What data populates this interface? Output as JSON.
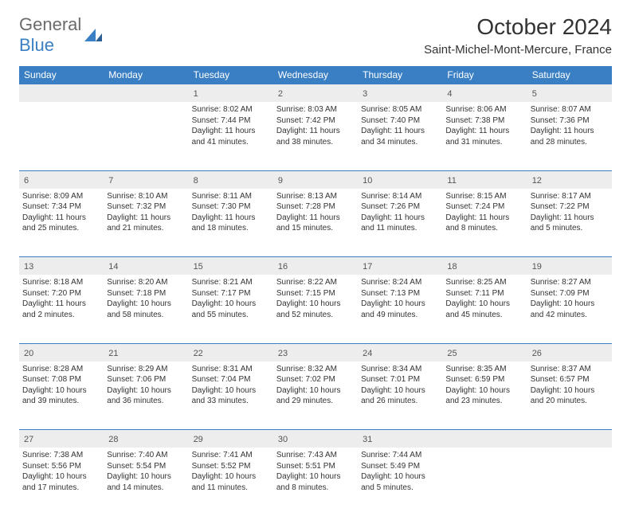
{
  "logo": {
    "text1": "General",
    "text2": "Blue"
  },
  "title": "October 2024",
  "location": "Saint-Michel-Mont-Mercure, France",
  "colors": {
    "accent": "#3a7fc4",
    "header_bg": "#3a7fc4",
    "daynum_bg": "#ededed",
    "border": "#3a7fc4",
    "text": "#333333"
  },
  "day_headers": [
    "Sunday",
    "Monday",
    "Tuesday",
    "Wednesday",
    "Thursday",
    "Friday",
    "Saturday"
  ],
  "weeks": [
    [
      null,
      null,
      {
        "n": "1",
        "sr": "8:02 AM",
        "ss": "7:44 PM",
        "dl": "11 hours and 41 minutes."
      },
      {
        "n": "2",
        "sr": "8:03 AM",
        "ss": "7:42 PM",
        "dl": "11 hours and 38 minutes."
      },
      {
        "n": "3",
        "sr": "8:05 AM",
        "ss": "7:40 PM",
        "dl": "11 hours and 34 minutes."
      },
      {
        "n": "4",
        "sr": "8:06 AM",
        "ss": "7:38 PM",
        "dl": "11 hours and 31 minutes."
      },
      {
        "n": "5",
        "sr": "8:07 AM",
        "ss": "7:36 PM",
        "dl": "11 hours and 28 minutes."
      }
    ],
    [
      {
        "n": "6",
        "sr": "8:09 AM",
        "ss": "7:34 PM",
        "dl": "11 hours and 25 minutes."
      },
      {
        "n": "7",
        "sr": "8:10 AM",
        "ss": "7:32 PM",
        "dl": "11 hours and 21 minutes."
      },
      {
        "n": "8",
        "sr": "8:11 AM",
        "ss": "7:30 PM",
        "dl": "11 hours and 18 minutes."
      },
      {
        "n": "9",
        "sr": "8:13 AM",
        "ss": "7:28 PM",
        "dl": "11 hours and 15 minutes."
      },
      {
        "n": "10",
        "sr": "8:14 AM",
        "ss": "7:26 PM",
        "dl": "11 hours and 11 minutes."
      },
      {
        "n": "11",
        "sr": "8:15 AM",
        "ss": "7:24 PM",
        "dl": "11 hours and 8 minutes."
      },
      {
        "n": "12",
        "sr": "8:17 AM",
        "ss": "7:22 PM",
        "dl": "11 hours and 5 minutes."
      }
    ],
    [
      {
        "n": "13",
        "sr": "8:18 AM",
        "ss": "7:20 PM",
        "dl": "11 hours and 2 minutes."
      },
      {
        "n": "14",
        "sr": "8:20 AM",
        "ss": "7:18 PM",
        "dl": "10 hours and 58 minutes."
      },
      {
        "n": "15",
        "sr": "8:21 AM",
        "ss": "7:17 PM",
        "dl": "10 hours and 55 minutes."
      },
      {
        "n": "16",
        "sr": "8:22 AM",
        "ss": "7:15 PM",
        "dl": "10 hours and 52 minutes."
      },
      {
        "n": "17",
        "sr": "8:24 AM",
        "ss": "7:13 PM",
        "dl": "10 hours and 49 minutes."
      },
      {
        "n": "18",
        "sr": "8:25 AM",
        "ss": "7:11 PM",
        "dl": "10 hours and 45 minutes."
      },
      {
        "n": "19",
        "sr": "8:27 AM",
        "ss": "7:09 PM",
        "dl": "10 hours and 42 minutes."
      }
    ],
    [
      {
        "n": "20",
        "sr": "8:28 AM",
        "ss": "7:08 PM",
        "dl": "10 hours and 39 minutes."
      },
      {
        "n": "21",
        "sr": "8:29 AM",
        "ss": "7:06 PM",
        "dl": "10 hours and 36 minutes."
      },
      {
        "n": "22",
        "sr": "8:31 AM",
        "ss": "7:04 PM",
        "dl": "10 hours and 33 minutes."
      },
      {
        "n": "23",
        "sr": "8:32 AM",
        "ss": "7:02 PM",
        "dl": "10 hours and 29 minutes."
      },
      {
        "n": "24",
        "sr": "8:34 AM",
        "ss": "7:01 PM",
        "dl": "10 hours and 26 minutes."
      },
      {
        "n": "25",
        "sr": "8:35 AM",
        "ss": "6:59 PM",
        "dl": "10 hours and 23 minutes."
      },
      {
        "n": "26",
        "sr": "8:37 AM",
        "ss": "6:57 PM",
        "dl": "10 hours and 20 minutes."
      }
    ],
    [
      {
        "n": "27",
        "sr": "7:38 AM",
        "ss": "5:56 PM",
        "dl": "10 hours and 17 minutes."
      },
      {
        "n": "28",
        "sr": "7:40 AM",
        "ss": "5:54 PM",
        "dl": "10 hours and 14 minutes."
      },
      {
        "n": "29",
        "sr": "7:41 AM",
        "ss": "5:52 PM",
        "dl": "10 hours and 11 minutes."
      },
      {
        "n": "30",
        "sr": "7:43 AM",
        "ss": "5:51 PM",
        "dl": "10 hours and 8 minutes."
      },
      {
        "n": "31",
        "sr": "7:44 AM",
        "ss": "5:49 PM",
        "dl": "10 hours and 5 minutes."
      },
      null,
      null
    ]
  ],
  "labels": {
    "sunrise": "Sunrise:",
    "sunset": "Sunset:",
    "daylight": "Daylight:"
  }
}
